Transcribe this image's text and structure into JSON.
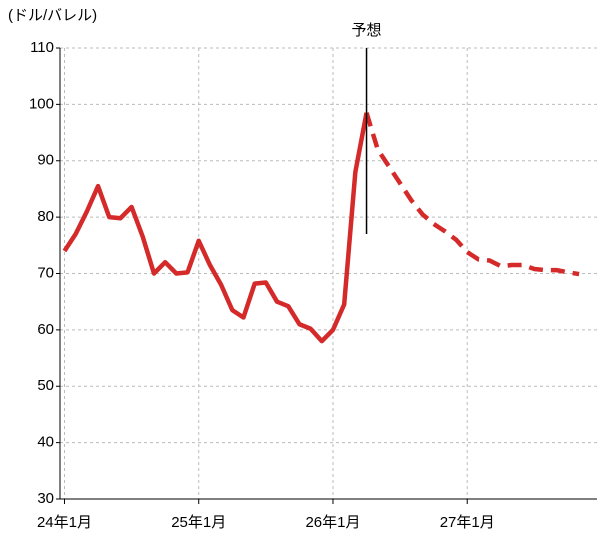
{
  "chart_data": {
    "type": "line",
    "y_axis_label": "(ドル/バレル)",
    "x": [
      0,
      1,
      2,
      3,
      4,
      5,
      6,
      7,
      8,
      9,
      10,
      11,
      12,
      13,
      14,
      15,
      16,
      17,
      18,
      19,
      20,
      21,
      22,
      23,
      24,
      25,
      26,
      27,
      28,
      29,
      30,
      31,
      32,
      33,
      34,
      35,
      36,
      37,
      38,
      39,
      40,
      41,
      42,
      43,
      44,
      45,
      46
    ],
    "xlim": [
      -0.4,
      47.6
    ],
    "xticks": [
      {
        "value": 0,
        "label": "24年1月"
      },
      {
        "value": 12,
        "label": "25年1月"
      },
      {
        "value": 24,
        "label": "26年1月"
      },
      {
        "value": 36,
        "label": "27年1月"
      }
    ],
    "ylim": [
      30,
      110
    ],
    "yticks": [
      30,
      40,
      50,
      60,
      70,
      80,
      90,
      100,
      110
    ],
    "grid": true,
    "series": [
      {
        "color": "#d42a2a",
        "dashed": false,
        "values": [
          74,
          77,
          81,
          85.5,
          80,
          79.8,
          81.8,
          76.5,
          70,
          72,
          70,
          70.2,
          75.8,
          71.5,
          68,
          63.5,
          62.2,
          68.2,
          68.4,
          65,
          64.2,
          61,
          60.2,
          58,
          60,
          64.5,
          88,
          98.5,
          null,
          null,
          null,
          null,
          null,
          null,
          null,
          null,
          null,
          null,
          null,
          null,
          null,
          null,
          null,
          null,
          null,
          null,
          null
        ]
      },
      {
        "color": "#d42a2a",
        "dashed": true,
        "values": [
          null,
          null,
          null,
          null,
          null,
          null,
          null,
          null,
          null,
          null,
          null,
          null,
          null,
          null,
          null,
          null,
          null,
          null,
          null,
          null,
          null,
          null,
          null,
          null,
          null,
          null,
          null,
          98.5,
          92,
          89,
          86,
          83,
          80.5,
          78.8,
          77.5,
          76,
          73.8,
          72.5,
          72.3,
          71.3,
          71.5,
          71.5,
          70.8,
          70.6,
          70.6,
          70.2,
          69.9
        ]
      }
    ],
    "annotation": {
      "text": "予想",
      "x": 27,
      "y_top": 110,
      "y_bottom": 77
    }
  }
}
